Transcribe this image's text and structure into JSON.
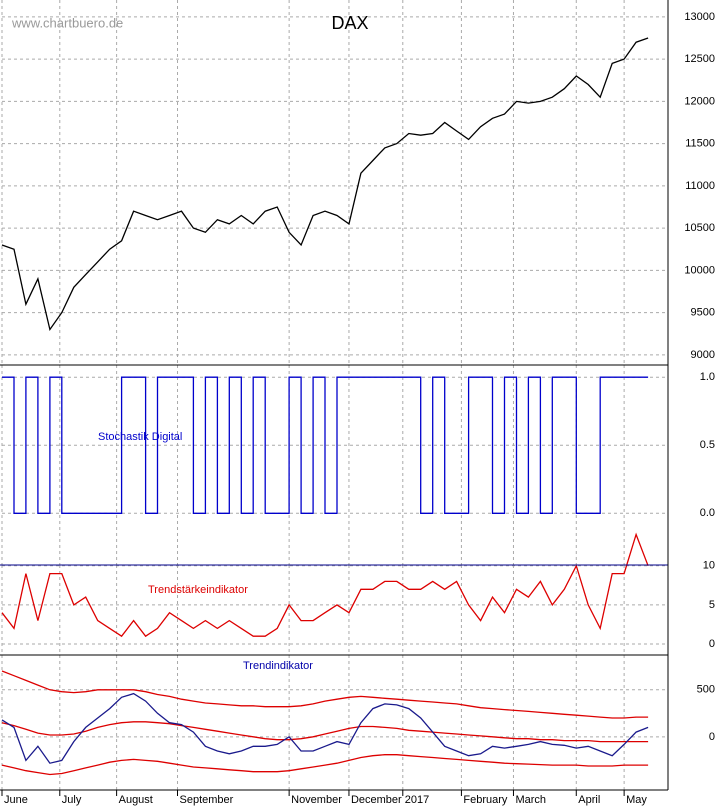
{
  "watermark": "www.chartbuero.de",
  "chart_data": [
    {
      "type": "line",
      "title": "DAX",
      "series": [
        {
          "color": "#000000",
          "values": [
            10300,
            10250,
            9600,
            9900,
            9300,
            9500,
            9800,
            9950,
            10100,
            10250,
            10350,
            10700,
            10650,
            10600,
            10650,
            10700,
            10500,
            10450,
            10600,
            10550,
            10650,
            10550,
            10700,
            10750,
            10450,
            10300,
            10650,
            10700,
            10650,
            10550,
            11150,
            11300,
            11450,
            11500,
            11620,
            11600,
            11620,
            11750,
            11650,
            11550,
            11700,
            11800,
            11850,
            12000,
            11980,
            12000,
            12050,
            12150,
            12300,
            12200,
            12050,
            12450,
            12500,
            12700,
            12750
          ]
        }
      ],
      "ylim": [
        8880,
        13200
      ],
      "yticks": [
        9000,
        9500,
        10000,
        10500,
        11000,
        11500,
        12000,
        12500,
        13000
      ],
      "grid": true
    },
    {
      "type": "step",
      "title": "Stochastik Digital",
      "series": [
        {
          "color": "#0000cc",
          "values": [
            1,
            0,
            1,
            0,
            1,
            0,
            0,
            0,
            0,
            0,
            1,
            1,
            0,
            1,
            1,
            1,
            0,
            1,
            0,
            1,
            0,
            1,
            0,
            0,
            1,
            0,
            1,
            0,
            1,
            1,
            1,
            1,
            1,
            1,
            1,
            0,
            1,
            0,
            0,
            1,
            1,
            0,
            1,
            0,
            1,
            0,
            1,
            1,
            0,
            0,
            1,
            1,
            1,
            1,
            1
          ]
        }
      ],
      "ylim": [
        -0.38,
        1.09
      ],
      "yticks": [
        {
          "value": 0,
          "label": "0.0"
        },
        {
          "value": 0.5,
          "label": "0.5"
        },
        {
          "value": 1,
          "label": "1.0"
        }
      ],
      "grid": true
    },
    {
      "type": "line",
      "title": "Trendstärkeindikator",
      "series": [
        {
          "color": "#dd0000",
          "values": [
            4,
            2,
            9,
            3,
            9,
            9,
            5,
            6,
            3,
            2,
            1,
            3,
            1,
            2,
            4,
            3,
            2,
            3,
            2,
            3,
            2,
            1,
            1,
            2,
            5,
            3,
            3,
            4,
            5,
            4,
            7,
            7,
            8,
            8,
            7,
            7,
            8,
            7,
            8,
            5,
            3,
            6,
            4,
            7,
            6,
            8,
            5,
            7,
            10,
            5,
            2,
            9,
            9,
            14,
            10
          ]
        }
      ],
      "ylim": [
        -1.4,
        10.1
      ],
      "yticks": [
        0,
        5,
        10
      ],
      "grid": true
    },
    {
      "type": "line",
      "title": "Trendindikator",
      "series": [
        {
          "color": "#dd0000",
          "values": [
            700,
            650,
            600,
            550,
            500,
            480,
            470,
            480,
            500,
            500,
            500,
            500,
            480,
            450,
            430,
            400,
            380,
            360,
            350,
            340,
            330,
            330,
            320,
            320,
            320,
            330,
            350,
            380,
            400,
            420,
            430,
            420,
            410,
            400,
            390,
            380,
            370,
            360,
            350,
            330,
            310,
            300,
            290,
            280,
            270,
            260,
            250,
            240,
            230,
            220,
            210,
            200,
            200,
            210,
            210
          ]
        },
        {
          "color": "#dd0000",
          "values": [
            150,
            120,
            80,
            40,
            20,
            20,
            30,
            60,
            100,
            130,
            150,
            160,
            160,
            150,
            140,
            120,
            100,
            80,
            60,
            40,
            20,
            0,
            -20,
            -30,
            -30,
            -20,
            0,
            30,
            60,
            90,
            110,
            110,
            100,
            90,
            70,
            60,
            50,
            40,
            30,
            20,
            10,
            0,
            -10,
            -20,
            -20,
            -30,
            -30,
            -40,
            -40,
            -40,
            -50,
            -50,
            -50,
            -50,
            -50
          ]
        },
        {
          "color": "#dd0000",
          "values": [
            -300,
            -330,
            -360,
            -380,
            -400,
            -390,
            -360,
            -330,
            -300,
            -270,
            -250,
            -240,
            -250,
            -260,
            -280,
            -300,
            -320,
            -330,
            -340,
            -350,
            -360,
            -370,
            -370,
            -370,
            -360,
            -340,
            -320,
            -300,
            -280,
            -250,
            -220,
            -200,
            -190,
            -190,
            -200,
            -210,
            -220,
            -230,
            -240,
            -250,
            -260,
            -270,
            -280,
            -285,
            -290,
            -295,
            -300,
            -300,
            -300,
            -310,
            -310,
            -310,
            -300,
            -300,
            -300
          ]
        },
        {
          "color": "#1a1a8c",
          "values": [
            180,
            100,
            -250,
            -100,
            -280,
            -250,
            -50,
            100,
            200,
            300,
            420,
            460,
            380,
            250,
            150,
            130,
            50,
            -100,
            -150,
            -180,
            -150,
            -100,
            -100,
            -80,
            0,
            -150,
            -150,
            -100,
            -50,
            -80,
            150,
            300,
            350,
            340,
            300,
            200,
            50,
            -100,
            -150,
            -200,
            -180,
            -100,
            -120,
            -100,
            -80,
            -50,
            -80,
            -90,
            -120,
            -100,
            -150,
            -200,
            -80,
            50,
            100
          ]
        }
      ],
      "ylim": [
        -565,
        870
      ],
      "yticks": [
        0,
        500
      ],
      "grid": true,
      "xlim": [
        0,
        55.5
      ],
      "xticks": [
        {
          "value": 0,
          "label": "June"
        },
        {
          "value": 4.83,
          "label": "July"
        },
        {
          "value": 9.58,
          "label": "August"
        },
        {
          "value": 14.67,
          "label": "September"
        },
        {
          "value": 24,
          "label": "November"
        },
        {
          "value": 29,
          "label": "December"
        },
        {
          "value": 33.5,
          "label": "2017"
        },
        {
          "value": 38.4,
          "label": "February"
        },
        {
          "value": 42.75,
          "label": "March"
        },
        {
          "value": 48,
          "label": "April"
        },
        {
          "value": 52,
          "label": "May"
        }
      ]
    }
  ]
}
